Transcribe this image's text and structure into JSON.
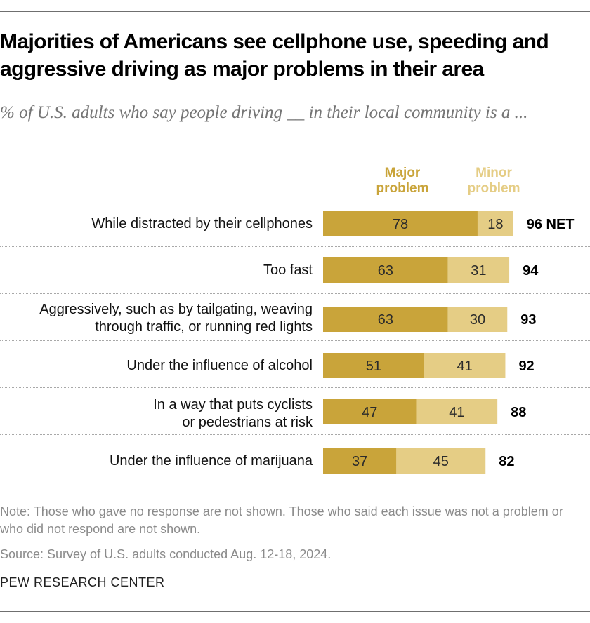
{
  "title": "Majorities of Americans see cellphone use, speeding and aggressive driving as major problems in their area",
  "subtitle": "% of U.S. adults who say people driving __ in their local community is a ...",
  "legend": {
    "major": {
      "line1": "Major",
      "line2": "problem"
    },
    "minor": {
      "line1": "Minor",
      "line2": "problem"
    }
  },
  "colors": {
    "major": "#c9a43a",
    "minor": "#e5cd85"
  },
  "net_suffix": "NET",
  "chart_data": {
    "type": "bar",
    "orientation": "horizontal",
    "stacked": true,
    "categories": [
      {
        "line1": "While distracted by their cellphones",
        "line2": ""
      },
      {
        "line1": "Too fast",
        "line2": ""
      },
      {
        "line1": "Aggressively, such as by tailgating, weaving",
        "line2": "through traffic, or running red lights"
      },
      {
        "line1": "Under the influence of alcohol",
        "line2": ""
      },
      {
        "line1": "In a way that puts cyclists",
        "line2": "or pedestrians at risk"
      },
      {
        "line1": "Under the influence of marijuana",
        "line2": ""
      }
    ],
    "series": [
      {
        "name": "Major problem",
        "values": [
          78,
          63,
          63,
          51,
          47,
          37
        ]
      },
      {
        "name": "Minor problem",
        "values": [
          18,
          31,
          30,
          41,
          41,
          45
        ]
      }
    ],
    "net": [
      96,
      94,
      93,
      92,
      88,
      82
    ]
  },
  "note": "Note: Those who gave no response are not shown. Those who said each issue was not a problem or who did not respond are not shown.",
  "source": "Source: Survey of U.S. adults conducted Aug. 12-18, 2024.",
  "brand": "PEW RESEARCH CENTER"
}
